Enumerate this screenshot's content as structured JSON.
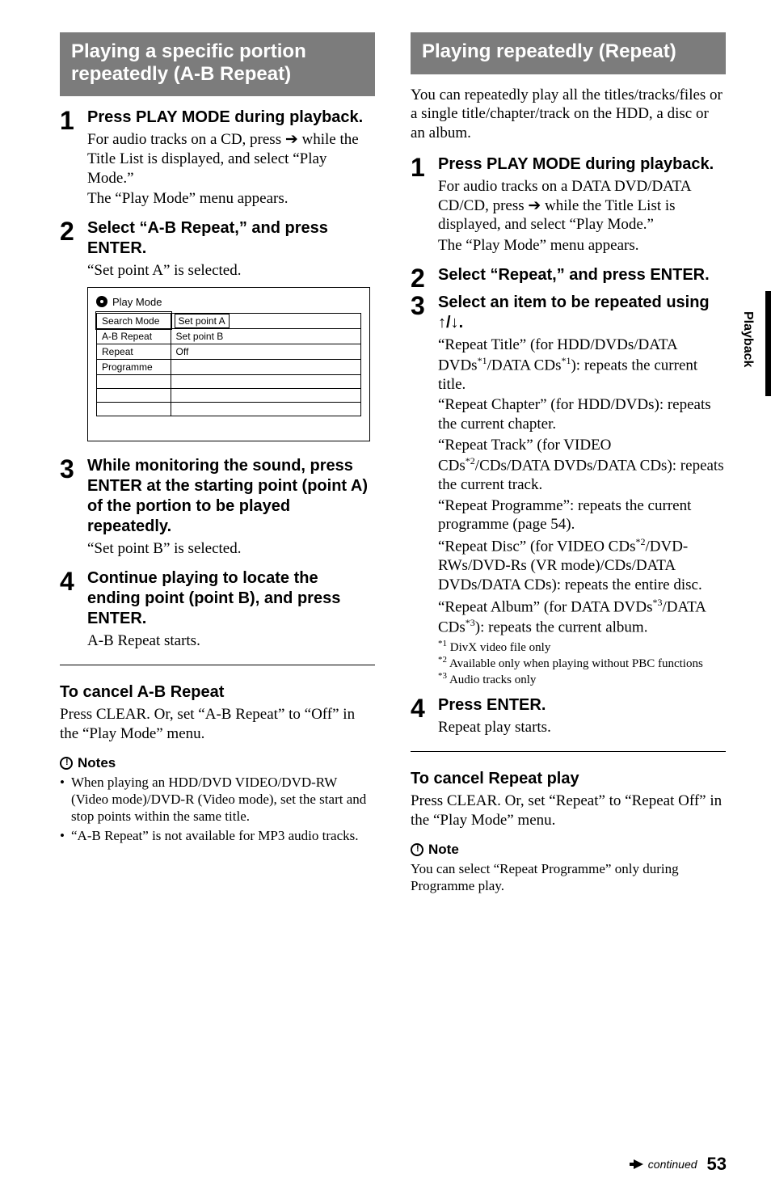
{
  "tab_label": "Playback",
  "left": {
    "heading": "Playing a specific portion repeatedly (A-B Repeat)",
    "steps": [
      {
        "lead": "Press PLAY MODE during playback.",
        "paras": [
          "For audio tracks on a CD, press ➔ while the Title List is displayed, and select “Play Mode.”",
          "The “Play Mode” menu appears."
        ]
      },
      {
        "lead": "Select “A-B Repeat,” and press ENTER.",
        "paras": [
          "“Set point A” is selected."
        ],
        "menu": {
          "title": "Play Mode",
          "rows": [
            {
              "l": "Search Mode",
              "r": "Set point A",
              "sel": true
            },
            {
              "l": "A-B Repeat",
              "r": "Set point B"
            },
            {
              "l": "Repeat",
              "r": "Off"
            },
            {
              "l": "Programme",
              "r": ""
            },
            {
              "l": "",
              "r": ""
            },
            {
              "l": "",
              "r": ""
            },
            {
              "l": "",
              "r": ""
            }
          ]
        }
      },
      {
        "lead": "While monitoring the sound, press ENTER at the starting point (point A) of the portion to be played repeatedly.",
        "paras": [
          "“Set point B” is selected."
        ]
      },
      {
        "lead": "Continue playing to locate the ending point (point B), and press ENTER.",
        "paras": [
          "A-B Repeat starts."
        ]
      }
    ],
    "sub_h": "To cancel A-B Repeat",
    "sub_p": "Press CLEAR. Or, set “A-B Repeat” to “Off” in the “Play Mode” menu.",
    "notes_h": "Notes",
    "notes": [
      "When playing an HDD/DVD VIDEO/DVD-RW (Video mode)/DVD-R (Video mode), set the start and stop points within the same title.",
      "“A-B Repeat” is not available for MP3 audio tracks."
    ]
  },
  "right": {
    "heading": "Playing repeatedly (Repeat)",
    "intro": "You can repeatedly play all the titles/tracks/files or a single title/chapter/track on the HDD, a disc or an album.",
    "steps": [
      {
        "lead": "Press PLAY MODE during playback.",
        "paras": [
          "For audio tracks on a DATA DVD/DATA CD/CD, press ➔ while the Title List is displayed, and select “Play Mode.”",
          "The “Play Mode” menu appears."
        ]
      },
      {
        "lead": "Select “Repeat,” and press ENTER."
      },
      {
        "lead_html": "Select an item to be repeated using <span class='updown'>↑/↓</span>.",
        "paras_html": [
          "“Repeat Title” (for HDD/DVDs/DATA DVDs<span class='sup'>*1</span>/DATA CDs<span class='sup'>*1</span>): repeats the current title.",
          "“Repeat Chapter” (for HDD/DVDs): repeats the current chapter.",
          "“Repeat Track” (for VIDEO CDs<span class='sup'>*2</span>/CDs/DATA DVDs/DATA CDs): repeats the current track.",
          "“Repeat Programme”: repeats the current programme (page 54).",
          "“Repeat Disc” (for VIDEO CDs<span class='sup'>*2</span>/DVD-RWs/DVD-Rs (VR mode)/CDs/DATA DVDs/DATA CDs): repeats the entire disc.",
          "“Repeat Album” (for DATA DVDs<span class='sup'>*3</span>/DATA CDs<span class='sup'>*3</span>): repeats the current album."
        ],
        "footnotes": [
          {
            "n": "*1",
            "t": "DivX video file only"
          },
          {
            "n": "*2",
            "t": "Available only when playing without PBC functions"
          },
          {
            "n": "*3",
            "t": "Audio tracks only"
          }
        ]
      },
      {
        "lead": "Press ENTER.",
        "paras": [
          "Repeat play starts."
        ]
      }
    ],
    "sub_h": "To cancel Repeat play",
    "sub_p": "Press CLEAR. Or, set “Repeat” to “Repeat Off” in the “Play Mode” menu.",
    "notes_h": "Note",
    "notes": [
      "You can select “Repeat Programme” only during Programme play."
    ]
  },
  "continued": "continued",
  "page_num": "53"
}
